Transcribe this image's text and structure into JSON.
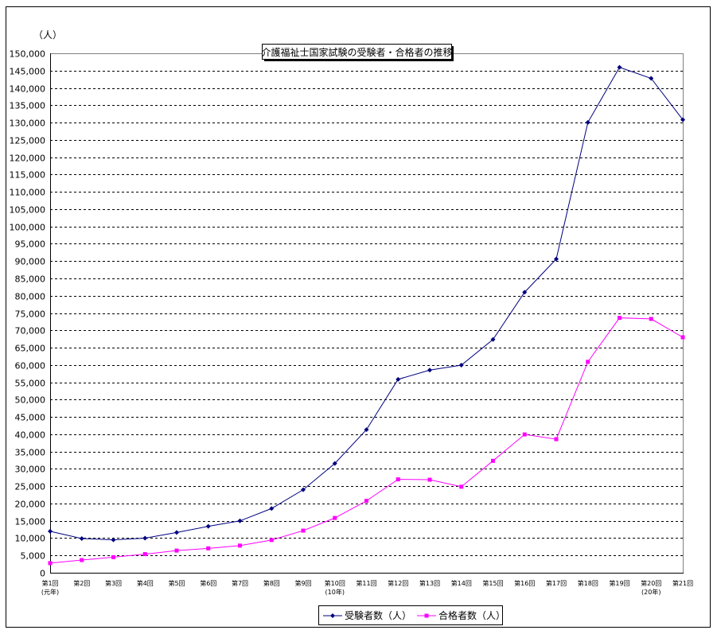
{
  "chart_data": {
    "type": "line",
    "title": "介護福祉士国家試験の受験者・合格者の推移",
    "ylabel": "（人）",
    "xlabel": "",
    "ylim": [
      0,
      150000
    ],
    "ytick_step": 5000,
    "grid": true,
    "legend_position": "bottom",
    "categories": [
      "第1回",
      "第2回",
      "第3回",
      "第4回",
      "第5回",
      "第6回",
      "第7回",
      "第8回",
      "第9回",
      "第10回",
      "第11回",
      "第12回",
      "第13回",
      "第14回",
      "第15回",
      "第16回",
      "第17回",
      "第18回",
      "第19回",
      "第20回",
      "第21回"
    ],
    "category_sublabels": {
      "0": "(元年)",
      "9": "(10年)",
      "19": "(20年)"
    },
    "series": [
      {
        "name": "受験者数（人）",
        "color": "#000080",
        "marker": "diamond",
        "values": [
          11973,
          9868,
          9516,
          9987,
          11628,
          13402,
          14982,
          18544,
          23977,
          31567,
          41325,
          55853,
          58517,
          59943,
          67363,
          81008,
          90602,
          130034,
          145946,
          142765,
          130830
        ]
      },
      {
        "name": "合格者数（人）",
        "color": "#FF00FF",
        "marker": "square",
        "values": [
          2782,
          3664,
          4498,
          5379,
          6402,
          7041,
          7845,
          9450,
          12163,
          15819,
          20758,
          26973,
          26862,
          24845,
          32319,
          39938,
          38576,
          60910,
          73606,
          73302,
          67993
        ]
      }
    ]
  }
}
